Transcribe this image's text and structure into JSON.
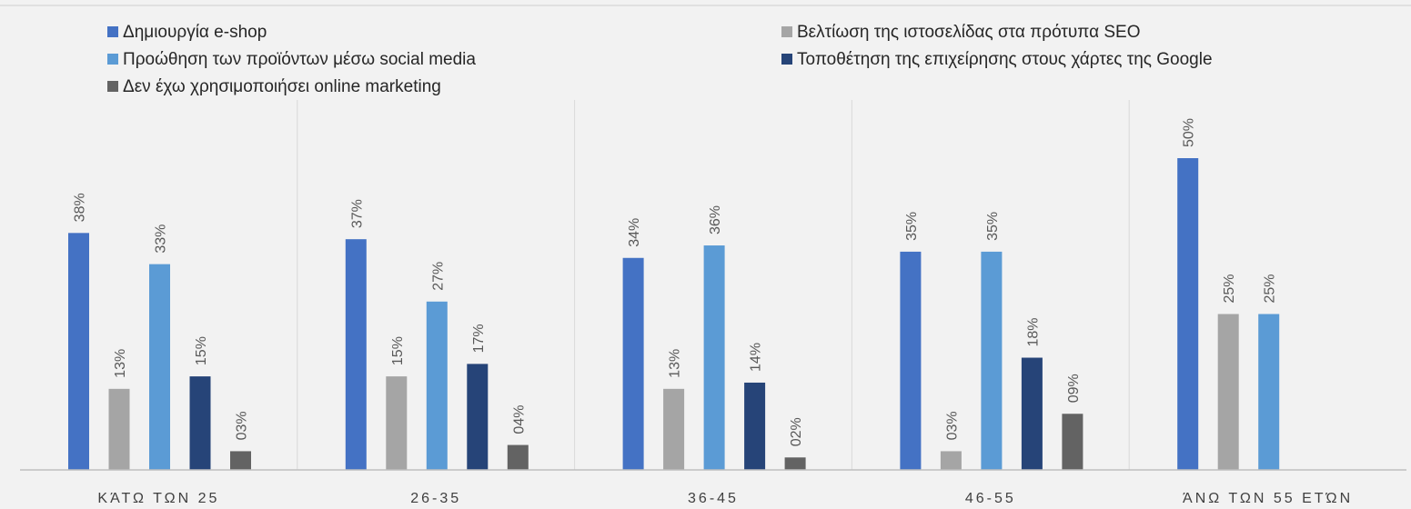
{
  "chart_data": {
    "type": "bar",
    "categories": [
      "ΚΆΤΩ ΤΩΝ 25",
      "26-35",
      "36-45",
      "46-55",
      "ΆΝΩ ΤΩΝ 55 ΕΤΏΝ"
    ],
    "ylim": [
      0,
      60
    ],
    "grid": false,
    "legend_position": "top",
    "series": [
      {
        "name": "Δημιουργία e-shop",
        "color": "#4472c4",
        "values": [
          38,
          37,
          34,
          35,
          50
        ],
        "labels": [
          "38%",
          "37%",
          "34%",
          "35%",
          "50%"
        ]
      },
      {
        "name": "Βελτίωση της ιστοσελίδας στα πρότυπα SEO",
        "color": "#a5a5a5",
        "values": [
          13,
          15,
          13,
          3,
          25
        ],
        "labels": [
          "13%",
          "15%",
          "13%",
          "03%",
          "25%"
        ]
      },
      {
        "name": "Προώθηση των προϊόντων μέσω social media",
        "color": "#5b9bd5",
        "values": [
          33,
          27,
          36,
          35,
          25
        ],
        "labels": [
          "33%",
          "27%",
          "36%",
          "35%",
          "25%"
        ]
      },
      {
        "name": "Τοποθέτηση της επιχείρησης στους χάρτες της Google",
        "color": "#264478",
        "values": [
          15,
          17,
          14,
          18,
          null
        ],
        "labels": [
          "15%",
          "17%",
          "14%",
          "18%",
          ""
        ]
      },
      {
        "name": "Δεν έχω χρησιμοποιήσει online marketing",
        "color": "#636363",
        "values": [
          3,
          4,
          2,
          9,
          null
        ],
        "labels": [
          "03%",
          "04%",
          "02%",
          "09%",
          ""
        ]
      }
    ]
  }
}
